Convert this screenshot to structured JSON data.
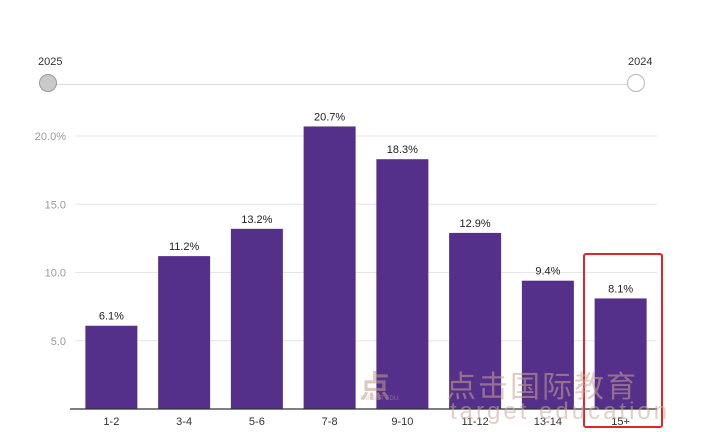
{
  "slider": {
    "left_label": "2025",
    "right_label": "2024"
  },
  "chart_data": {
    "type": "bar",
    "categories": [
      "1-2",
      "3-4",
      "5-6",
      "7-8",
      "9-10",
      "11-12",
      "13-14",
      "15+"
    ],
    "values": [
      6.1,
      11.2,
      13.2,
      20.7,
      18.3,
      12.9,
      9.4,
      8.1
    ],
    "data_labels": [
      "6.1%",
      "11.2%",
      "13.2%",
      "20.7%",
      "18.3%",
      "12.9%",
      "9.4%",
      "8.1%"
    ],
    "yticks": [
      5,
      10,
      15,
      20
    ],
    "ytick_labels": [
      "5.0",
      "10.0",
      "15.0",
      "20.0%"
    ],
    "ylim": [
      0,
      22
    ],
    "grid": true,
    "bar_color": "#54308a",
    "highlighted_category": "15+",
    "highlight_color": "#e0262b"
  },
  "watermark": {
    "logo": "点",
    "small": "TARGET EDU.",
    "cn": "点击国际教育",
    "en": "target education"
  }
}
